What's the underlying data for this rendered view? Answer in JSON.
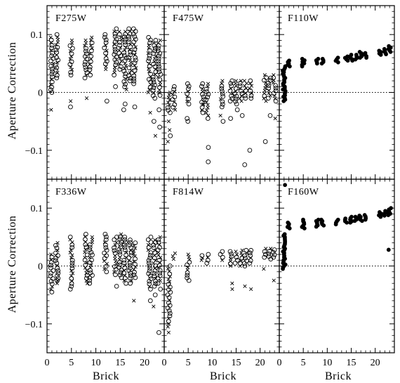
{
  "chart_data": {
    "type": "scatter",
    "xlabel": "Brick",
    "ylabel": "Aperture Correction",
    "xlim": [
      0,
      24
    ],
    "ylim": [
      -0.15,
      0.15
    ],
    "xticks": [
      0,
      5,
      10,
      15,
      20
    ],
    "yticks": [
      -0.1,
      0,
      0.1
    ],
    "ytick_labels": [
      "−0.1",
      "0",
      "0.1"
    ],
    "reference_line": {
      "y": 0,
      "style": "dotted"
    },
    "marker_legend": {
      "circle": "open circle",
      "cross": "x",
      "dot": "filled circle"
    },
    "panels": [
      {
        "name": "F275W",
        "markers": "circle+cross",
        "bricks": [
          {
            "x": 1,
            "range": [
              0.0,
              0.095
            ],
            "extra": [
              -0.03
            ]
          },
          {
            "x": 2,
            "range": [
              0.025,
              0.1
            ]
          },
          {
            "x": 5,
            "range": [
              0.03,
              0.09
            ],
            "extra": [
              -0.015,
              -0.025
            ]
          },
          {
            "x": 8,
            "range": [
              0.025,
              0.09
            ],
            "extra": [
              -0.01
            ]
          },
          {
            "x": 9,
            "range": [
              0.03,
              0.095
            ]
          },
          {
            "x": 12,
            "range": [
              0.04,
              0.1
            ],
            "extra": [
              -0.015
            ]
          },
          {
            "x": 14,
            "range": [
              0.03,
              0.11
            ],
            "extra": [
              0.01
            ]
          },
          {
            "x": 15,
            "range": [
              0.04,
              0.105
            ]
          },
          {
            "x": 16,
            "range": [
              0.005,
              0.105
            ],
            "extra": [
              -0.02,
              -0.03
            ]
          },
          {
            "x": 17,
            "range": [
              0.02,
              0.11
            ]
          },
          {
            "x": 18,
            "range": [
              0.015,
              0.11
            ],
            "extra": [
              -0.025
            ]
          },
          {
            "x": 21,
            "range": [
              0.0,
              0.095
            ],
            "extra": [
              -0.035
            ]
          },
          {
            "x": 22,
            "range": [
              -0.01,
              0.09
            ],
            "extra": [
              -0.05,
              -0.075
            ]
          },
          {
            "x": 23,
            "range": [
              -0.005,
              0.09
            ],
            "extra": [
              -0.03,
              -0.06
            ]
          }
        ]
      },
      {
        "name": "F475W",
        "markers": "circle+cross",
        "bricks": [
          {
            "x": 1,
            "range": [
              -0.035,
              0.0
            ],
            "extra": [
              -0.05,
              -0.065,
              -0.075,
              -0.085
            ]
          },
          {
            "x": 2,
            "range": [
              -0.03,
              0.01
            ]
          },
          {
            "x": 5,
            "range": [
              -0.02,
              0.015
            ],
            "extra": [
              -0.045,
              -0.05
            ]
          },
          {
            "x": 8,
            "range": [
              -0.035,
              0.015
            ],
            "extra": [
              -0.02
            ]
          },
          {
            "x": 9,
            "range": [
              -0.04,
              0.015
            ],
            "extra": [
              -0.045,
              -0.095,
              -0.12
            ]
          },
          {
            "x": 12,
            "range": [
              -0.025,
              0.02
            ],
            "extra": [
              -0.04,
              -0.05
            ]
          },
          {
            "x": 14,
            "range": [
              -0.015,
              0.02
            ],
            "extra": [
              -0.045
            ]
          },
          {
            "x": 15,
            "range": [
              -0.02,
              0.02
            ],
            "extra": [
              -0.03
            ]
          },
          {
            "x": 16,
            "range": [
              -0.015,
              0.02
            ],
            "extra": [
              -0.04
            ]
          },
          {
            "x": 17,
            "range": [
              -0.01,
              0.02
            ],
            "extra": [
              -0.125
            ]
          },
          {
            "x": 18,
            "range": [
              -0.01,
              0.02
            ],
            "extra": [
              -0.1
            ]
          },
          {
            "x": 21,
            "range": [
              -0.015,
              0.03
            ],
            "extra": [
              -0.085
            ]
          },
          {
            "x": 22,
            "range": [
              -0.01,
              0.025
            ],
            "extra": [
              -0.04
            ]
          },
          {
            "x": 23,
            "range": [
              -0.015,
              0.03
            ],
            "extra": [
              -0.045
            ]
          }
        ]
      },
      {
        "name": "F110W",
        "markers": "dot",
        "bricks": [
          {
            "x": 1,
            "range": [
              -0.015,
              0.045
            ]
          },
          {
            "x": 2,
            "range": [
              0.045,
              0.055
            ]
          },
          {
            "x": 5,
            "range": [
              0.045,
              0.058
            ]
          },
          {
            "x": 8,
            "range": [
              0.05,
              0.058
            ]
          },
          {
            "x": 9,
            "range": [
              0.05,
              0.058
            ]
          },
          {
            "x": 12,
            "range": [
              0.052,
              0.06
            ]
          },
          {
            "x": 14,
            "range": [
              0.055,
              0.062
            ]
          },
          {
            "x": 15,
            "range": [
              0.055,
              0.065
            ]
          },
          {
            "x": 16,
            "range": [
              0.057,
              0.065
            ]
          },
          {
            "x": 17,
            "range": [
              0.06,
              0.07
            ]
          },
          {
            "x": 18,
            "range": [
              0.06,
              0.068
            ]
          },
          {
            "x": 21,
            "range": [
              0.065,
              0.072
            ]
          },
          {
            "x": 22,
            "range": [
              0.066,
              0.075
            ]
          },
          {
            "x": 23,
            "range": [
              0.07,
              0.08
            ]
          }
        ]
      },
      {
        "name": "F336W",
        "markers": "circle+cross",
        "bricks": [
          {
            "x": 1,
            "range": [
              -0.045,
              0.02
            ]
          },
          {
            "x": 2,
            "range": [
              -0.03,
              0.04
            ],
            "extra": [
              -0.025
            ]
          },
          {
            "x": 5,
            "range": [
              -0.035,
              0.05
            ],
            "extra": [
              -0.04
            ]
          },
          {
            "x": 8,
            "range": [
              -0.03,
              0.055
            ]
          },
          {
            "x": 9,
            "range": [
              -0.025,
              0.05
            ],
            "extra": [
              -0.03
            ]
          },
          {
            "x": 12,
            "range": [
              -0.01,
              0.055
            ]
          },
          {
            "x": 14,
            "range": [
              -0.015,
              0.05
            ],
            "extra": [
              -0.035
            ]
          },
          {
            "x": 15,
            "range": [
              -0.02,
              0.055
            ]
          },
          {
            "x": 16,
            "range": [
              -0.03,
              0.05
            ]
          },
          {
            "x": 17,
            "range": [
              -0.03,
              0.045
            ]
          },
          {
            "x": 18,
            "range": [
              -0.02,
              0.04
            ],
            "extra": [
              -0.06
            ]
          },
          {
            "x": 21,
            "range": [
              -0.04,
              0.05
            ],
            "extra": [
              -0.06
            ]
          },
          {
            "x": 22,
            "range": [
              -0.035,
              0.045
            ],
            "extra": [
              -0.05,
              -0.07
            ]
          },
          {
            "x": 23,
            "range": [
              -0.03,
              0.05
            ],
            "extra": [
              -0.04,
              -0.115
            ]
          }
        ]
      },
      {
        "name": "F814W",
        "markers": "circle+cross",
        "bricks": [
          {
            "x": 1,
            "range": [
              -0.1,
              0.0
            ],
            "extra": [
              -0.105,
              -0.115
            ]
          },
          {
            "x": 2,
            "range": [
              0.012,
              0.022
            ]
          },
          {
            "x": 5,
            "range": [
              -0.025,
              0.02
            ]
          },
          {
            "x": 8,
            "range": [
              0.01,
              0.018
            ]
          },
          {
            "x": 9,
            "range": [
              0.005,
              0.02
            ]
          },
          {
            "x": 12,
            "range": [
              0.01,
              0.025
            ]
          },
          {
            "x": 14,
            "range": [
              0.0,
              0.025
            ],
            "extra": [
              -0.03,
              -0.04
            ]
          },
          {
            "x": 15,
            "range": [
              0.005,
              0.025
            ]
          },
          {
            "x": 16,
            "range": [
              0.0,
              0.027
            ]
          },
          {
            "x": 17,
            "range": [
              0.0,
              0.027
            ],
            "extra": [
              -0.035
            ]
          },
          {
            "x": 18,
            "range": [
              0.005,
              0.027
            ],
            "extra": [
              -0.04
            ]
          },
          {
            "x": 21,
            "range": [
              0.015,
              0.03
            ],
            "extra": [
              -0.005
            ]
          },
          {
            "x": 22,
            "range": [
              0.012,
              0.03
            ]
          },
          {
            "x": 23,
            "range": [
              0.015,
              0.028
            ],
            "extra": [
              -0.025
            ]
          }
        ]
      },
      {
        "name": "F160W",
        "markers": "dot",
        "bricks": [
          {
            "x": 1,
            "range": [
              -0.005,
              0.055
            ],
            "extra": [
              0.14
            ]
          },
          {
            "x": 2,
            "range": [
              0.065,
              0.075
            ]
          },
          {
            "x": 5,
            "range": [
              0.065,
              0.08
            ]
          },
          {
            "x": 8,
            "range": [
              0.068,
              0.08
            ]
          },
          {
            "x": 9,
            "range": [
              0.07,
              0.08
            ]
          },
          {
            "x": 12,
            "range": [
              0.072,
              0.08
            ]
          },
          {
            "x": 14,
            "range": [
              0.075,
              0.082
            ]
          },
          {
            "x": 15,
            "range": [
              0.075,
              0.085
            ]
          },
          {
            "x": 16,
            "range": [
              0.078,
              0.085
            ]
          },
          {
            "x": 17,
            "range": [
              0.078,
              0.087
            ]
          },
          {
            "x": 18,
            "range": [
              0.08,
              0.088
            ]
          },
          {
            "x": 21,
            "range": [
              0.085,
              0.093
            ]
          },
          {
            "x": 22,
            "range": [
              0.087,
              0.095
            ]
          },
          {
            "x": 23,
            "range": [
              0.088,
              0.1
            ],
            "extra": [
              0.028
            ]
          }
        ]
      }
    ]
  }
}
